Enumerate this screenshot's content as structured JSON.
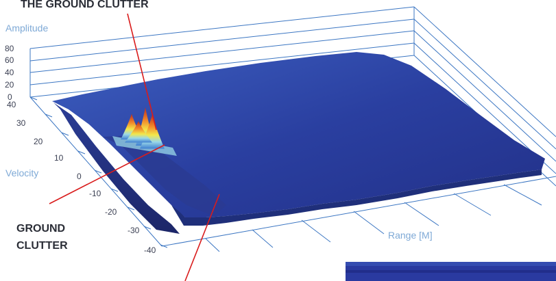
{
  "chart_data": {
    "type": "surface",
    "title": "",
    "annotations": [
      "THE GROUND CLUTTER",
      "GROUND",
      "CLUTTER"
    ],
    "zlabel": "Amplitude",
    "ylabel": "Velocity",
    "xlabel": "Range [M]",
    "z_ticks": [
      "80",
      "60",
      "40",
      "20",
      "0"
    ],
    "velocity_ticks": [
      "40",
      "30",
      "20",
      "10",
      "0",
      "-10",
      "-20",
      "-30",
      "-40"
    ],
    "zlim": [
      0,
      80
    ],
    "velocity_lim": [
      -40,
      40
    ],
    "colormap": [
      "#1f2f7a",
      "#2a3fa0",
      "#3f7fd0",
      "#9ad8e8",
      "#f2e84a",
      "#f28a2a",
      "#b8281e"
    ],
    "clutter_peaks": [
      {
        "velocity": 10,
        "amplitude": 45
      },
      {
        "velocity": 20,
        "amplitude": 30
      },
      {
        "velocity": 5,
        "amplitude": 40
      },
      {
        "velocity": 15,
        "amplitude": 25
      }
    ],
    "noise_floor_amplitude": 6,
    "grid": true
  },
  "colors": {
    "axis": "#3a75c2",
    "pointer": "#d91c1c",
    "surface_base": "#2a3fa0"
  }
}
